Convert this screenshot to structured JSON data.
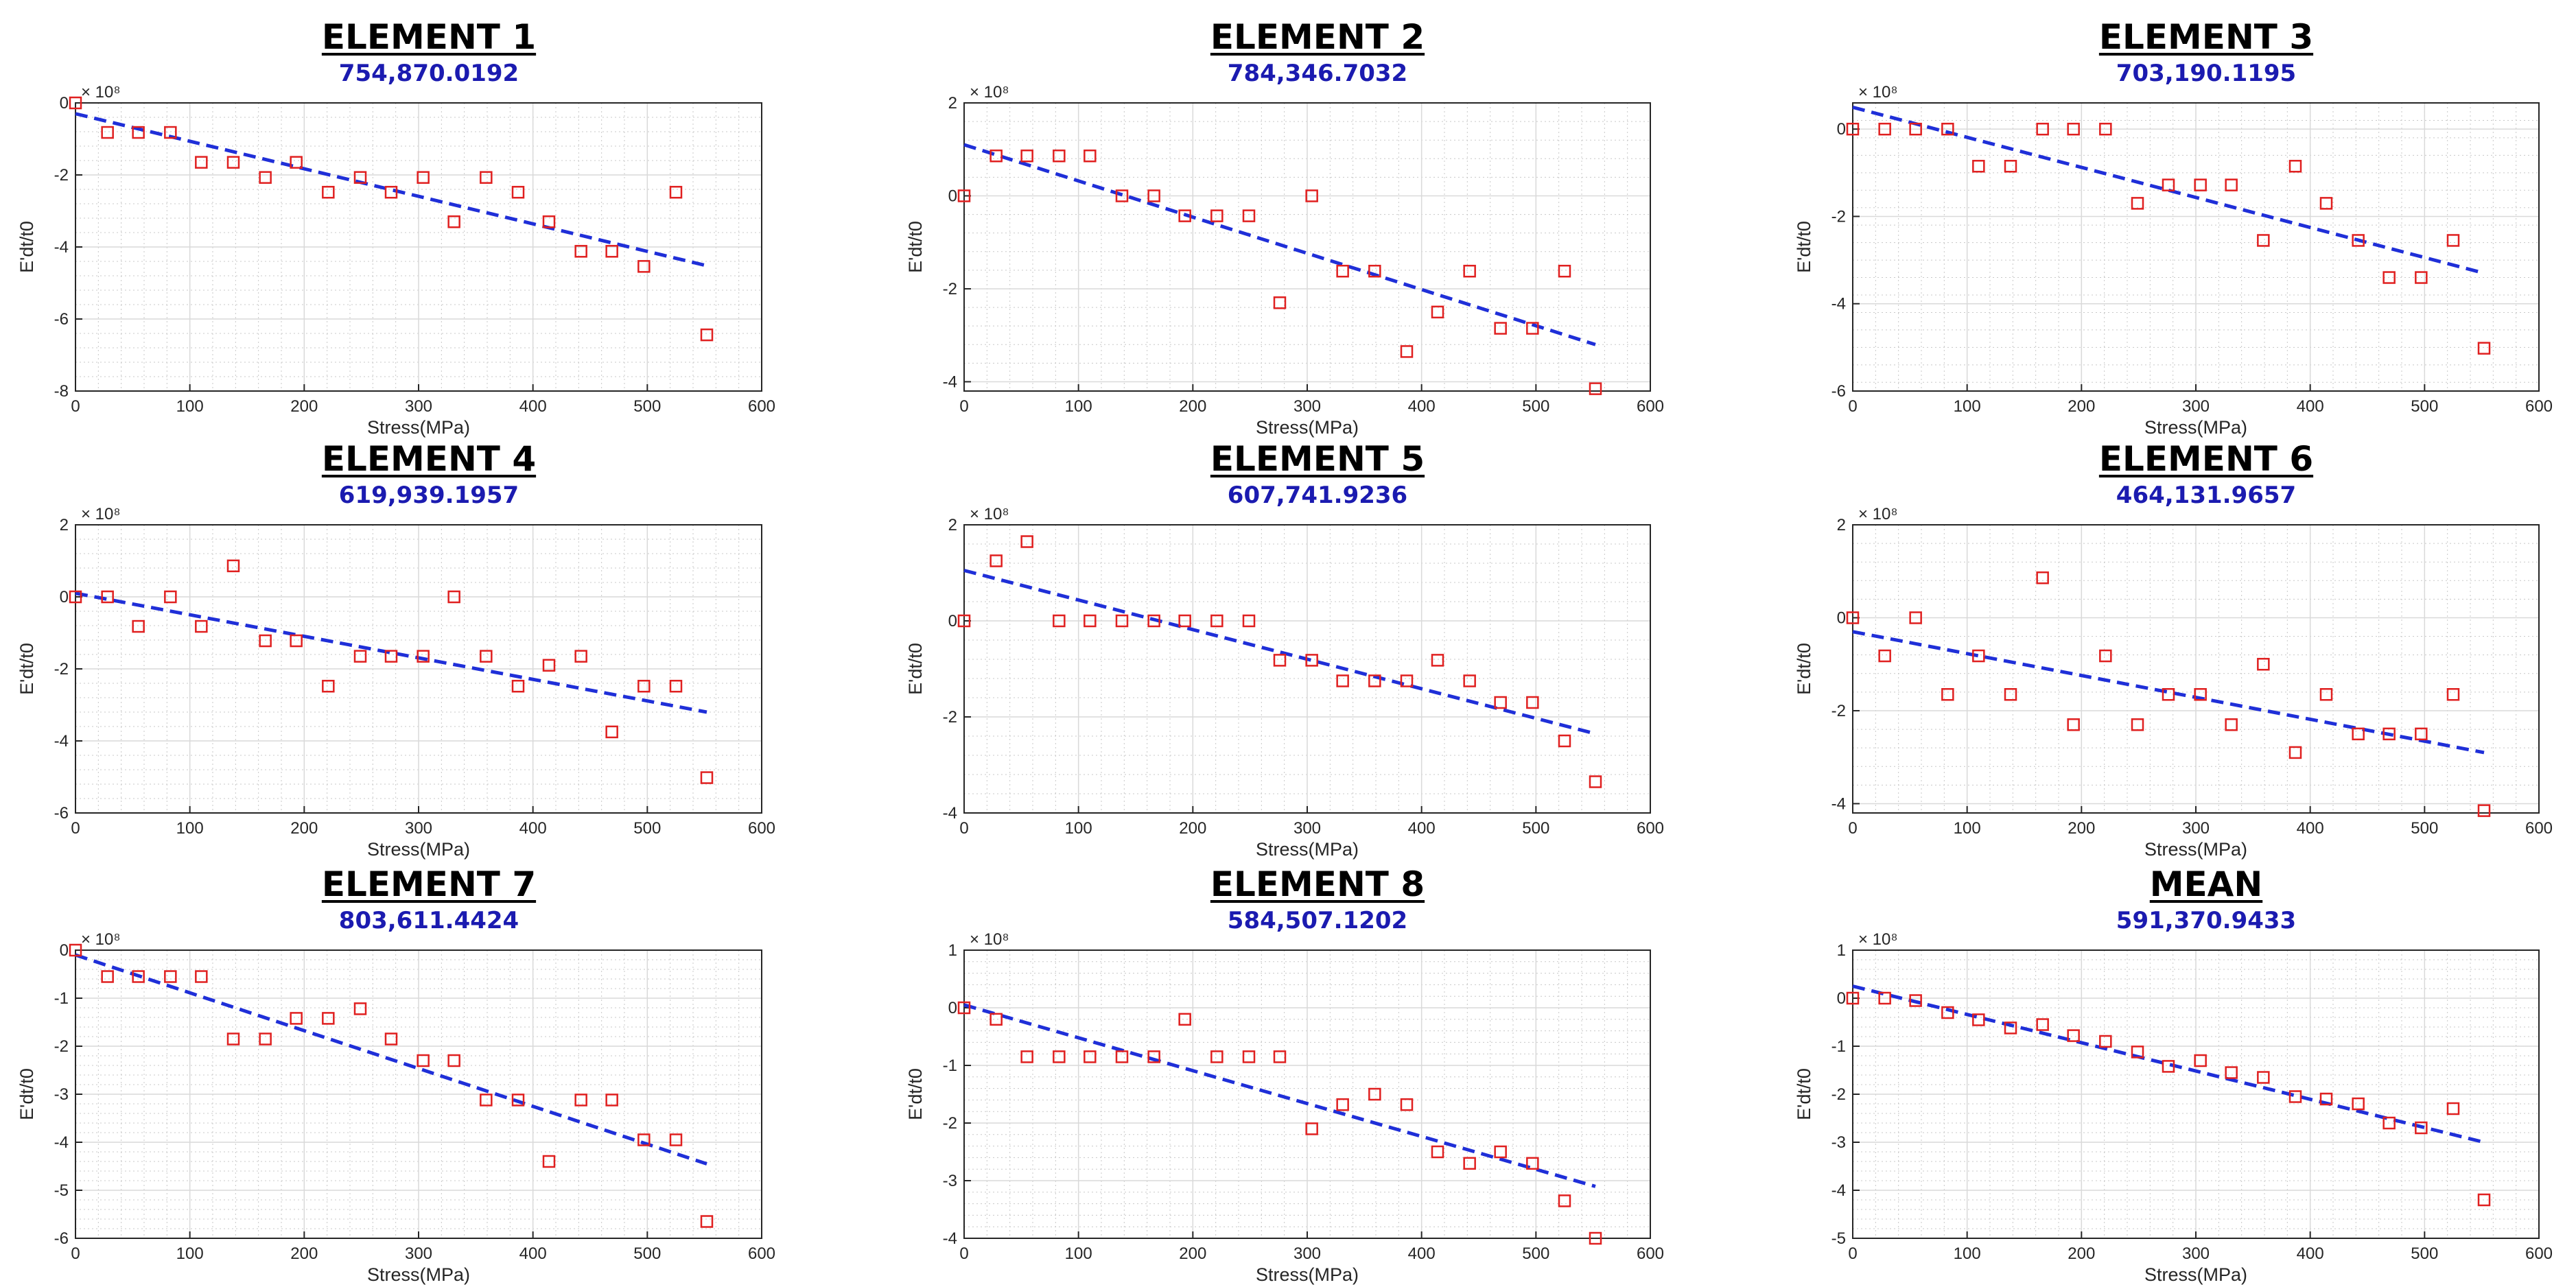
{
  "colors": {
    "points": "#e02020",
    "fit": "#1f2fd8",
    "subtitle": "#1b1bb0"
  },
  "chart_data": [
    {
      "type": "scatter",
      "title": "ELEMENT 1",
      "subtitle": "754,870.0192",
      "xlabel": "Stress(MPa)",
      "ylabel": "E'dt/t0",
      "exponent_label": "× 10⁸",
      "xlim": [
        0,
        600
      ],
      "ylim": [
        -8,
        0
      ],
      "xticks": [
        0,
        100,
        200,
        300,
        400,
        500,
        600
      ],
      "yticks": [
        -8,
        -6,
        -4,
        -2,
        0
      ],
      "x": [
        0,
        28,
        55,
        83,
        110,
        138,
        166,
        193,
        221,
        249,
        276,
        304,
        331,
        359,
        387,
        414,
        442,
        469,
        497,
        525,
        552
      ],
      "y": [
        0,
        -0.82,
        -0.82,
        -0.82,
        -1.65,
        -1.65,
        -2.07,
        -1.65,
        -2.48,
        -2.07,
        -2.48,
        -2.07,
        -3.3,
        -2.07,
        -2.48,
        -3.3,
        -4.12,
        -4.12,
        -4.54,
        -2.48,
        -6.44
      ],
      "fit": {
        "x": [
          0,
          552
        ],
        "y": [
          -0.3,
          -4.52
        ]
      }
    },
    {
      "type": "scatter",
      "title": "ELEMENT 2",
      "subtitle": "784,346.7032",
      "xlabel": "Stress(MPa)",
      "ylabel": "E'dt/t0",
      "exponent_label": "× 10⁸",
      "xlim": [
        0,
        600
      ],
      "ylim": [
        -4.2,
        2
      ],
      "xticks": [
        0,
        100,
        200,
        300,
        400,
        500,
        600
      ],
      "yticks": [
        -4,
        -2,
        0,
        2
      ],
      "x": [
        0,
        28,
        55,
        83,
        110,
        138,
        166,
        193,
        221,
        249,
        276,
        304,
        331,
        359,
        387,
        414,
        442,
        469,
        497,
        525,
        552
      ],
      "y": [
        0,
        0.86,
        0.86,
        0.86,
        0.86,
        0,
        0,
        -0.43,
        -0.43,
        -0.43,
        -2.3,
        0,
        -1.62,
        -1.62,
        -3.35,
        -2.5,
        -1.62,
        -2.85,
        -2.85,
        -1.62,
        -4.15
      ],
      "fit": {
        "x": [
          0,
          552
        ],
        "y": [
          1.1,
          -3.2
        ]
      }
    },
    {
      "type": "scatter",
      "title": "ELEMENT 3",
      "subtitle": "703,190.1195",
      "xlabel": "Stress(MPa)",
      "ylabel": "E'dt/t0",
      "exponent_label": "× 10⁸",
      "xlim": [
        0,
        600
      ],
      "ylim": [
        -6,
        0.6
      ],
      "xticks": [
        0,
        100,
        200,
        300,
        400,
        500,
        600
      ],
      "yticks": [
        -6,
        -4,
        -2,
        0
      ],
      "x": [
        0,
        28,
        55,
        83,
        110,
        138,
        166,
        193,
        221,
        249,
        276,
        304,
        331,
        359,
        387,
        414,
        442,
        469,
        497,
        525,
        552
      ],
      "y": [
        0,
        0,
        0,
        0,
        -0.85,
        -0.85,
        0,
        0,
        0,
        -1.7,
        -1.28,
        -1.28,
        -1.28,
        -2.55,
        -0.85,
        -1.7,
        -2.55,
        -3.4,
        -3.4,
        -2.55,
        -5.02
      ],
      "fit": {
        "x": [
          0,
          552
        ],
        "y": [
          0.5,
          -3.3
        ]
      }
    },
    {
      "type": "scatter",
      "title": "ELEMENT 4",
      "subtitle": "619,939.1957",
      "xlabel": "Stress(MPa)",
      "ylabel": "E'dt/t0",
      "exponent_label": "× 10⁸",
      "xlim": [
        0,
        600
      ],
      "ylim": [
        -6,
        2
      ],
      "xticks": [
        0,
        100,
        200,
        300,
        400,
        500,
        600
      ],
      "yticks": [
        -6,
        -4,
        -2,
        0,
        2
      ],
      "x": [
        0,
        28,
        55,
        83,
        110,
        138,
        166,
        193,
        221,
        249,
        276,
        304,
        331,
        359,
        387,
        414,
        442,
        469,
        497,
        525,
        552
      ],
      "y": [
        0,
        0,
        -0.82,
        0,
        -0.82,
        0.86,
        -1.22,
        -1.22,
        -2.48,
        -1.65,
        -1.65,
        -1.65,
        0,
        -1.65,
        -2.48,
        -1.9,
        -1.65,
        -3.75,
        -2.48,
        -2.48,
        -5.02
      ],
      "fit": {
        "x": [
          0,
          552
        ],
        "y": [
          0.1,
          -3.2
        ]
      }
    },
    {
      "type": "scatter",
      "title": "ELEMENT 5",
      "subtitle": "607,741.9236",
      "xlabel": "Stress(MPa)",
      "ylabel": "E'dt/t0",
      "exponent_label": "× 10⁸",
      "xlim": [
        0,
        600
      ],
      "ylim": [
        -4,
        2
      ],
      "xticks": [
        0,
        100,
        200,
        300,
        400,
        500,
        600
      ],
      "yticks": [
        -4,
        -2,
        0,
        2
      ],
      "x": [
        0,
        28,
        55,
        83,
        110,
        138,
        166,
        193,
        221,
        249,
        276,
        304,
        331,
        359,
        387,
        414,
        442,
        469,
        497,
        525,
        552
      ],
      "y": [
        0,
        1.25,
        1.65,
        0,
        0,
        0,
        0,
        0,
        0,
        0,
        -0.82,
        -0.82,
        -1.25,
        -1.25,
        -1.25,
        -0.82,
        -1.25,
        -1.7,
        -1.7,
        -2.5,
        -3.35
      ],
      "fit": {
        "x": [
          0,
          552
        ],
        "y": [
          1.05,
          -2.35
        ]
      }
    },
    {
      "type": "scatter",
      "title": "ELEMENT 6",
      "subtitle": "464,131.9657",
      "xlabel": "Stress(MPa)",
      "ylabel": "E'dt/t0",
      "exponent_label": "× 10⁸",
      "xlim": [
        0,
        600
      ],
      "ylim": [
        -4.2,
        2
      ],
      "xticks": [
        0,
        100,
        200,
        300,
        400,
        500,
        600
      ],
      "yticks": [
        -4,
        -2,
        0,
        2
      ],
      "x": [
        0,
        28,
        55,
        83,
        110,
        138,
        166,
        193,
        221,
        249,
        276,
        304,
        331,
        359,
        387,
        414,
        442,
        469,
        497,
        525,
        552
      ],
      "y": [
        0,
        -0.82,
        0,
        -1.65,
        -0.82,
        -1.65,
        0.86,
        -2.3,
        -0.82,
        -2.3,
        -1.65,
        -1.65,
        -2.3,
        -1.0,
        -2.9,
        -1.65,
        -2.5,
        -2.5,
        -2.5,
        -1.65,
        -4.15
      ],
      "fit": {
        "x": [
          0,
          552
        ],
        "y": [
          -0.3,
          -2.9
        ]
      }
    },
    {
      "type": "scatter",
      "title": "ELEMENT 7",
      "subtitle": "803,611.4424",
      "xlabel": "Stress(MPa)",
      "ylabel": "E'dt/t0",
      "exponent_label": "× 10⁸",
      "xlim": [
        0,
        600
      ],
      "ylim": [
        -6,
        0
      ],
      "xticks": [
        0,
        100,
        200,
        300,
        400,
        500,
        600
      ],
      "yticks": [
        -6,
        -5,
        -4,
        -3,
        -2,
        -1,
        0
      ],
      "x": [
        0,
        28,
        55,
        83,
        110,
        138,
        166,
        193,
        221,
        249,
        276,
        304,
        331,
        359,
        387,
        414,
        442,
        469,
        497,
        525,
        552
      ],
      "y": [
        0,
        -0.55,
        -0.55,
        -0.55,
        -0.55,
        -1.85,
        -1.85,
        -1.42,
        -1.42,
        -1.22,
        -1.85,
        -2.3,
        -2.3,
        -3.12,
        -3.12,
        -4.4,
        -3.12,
        -3.12,
        -3.95,
        -3.95,
        -5.65
      ],
      "fit": {
        "x": [
          0,
          552
        ],
        "y": [
          -0.1,
          -4.45
        ]
      }
    },
    {
      "type": "scatter",
      "title": "ELEMENT 8",
      "subtitle": "584,507.1202",
      "xlabel": "Stress(MPa)",
      "ylabel": "E'dt/t0",
      "exponent_label": "× 10⁸",
      "xlim": [
        0,
        600
      ],
      "ylim": [
        -4,
        1
      ],
      "xticks": [
        0,
        100,
        200,
        300,
        400,
        500,
        600
      ],
      "yticks": [
        -4,
        -3,
        -2,
        -1,
        0,
        1
      ],
      "x": [
        0,
        28,
        55,
        83,
        110,
        138,
        166,
        193,
        221,
        249,
        276,
        304,
        331,
        359,
        387,
        414,
        442,
        469,
        497,
        525,
        552
      ],
      "y": [
        0,
        -0.2,
        -0.85,
        -0.85,
        -0.85,
        -0.85,
        -0.85,
        -0.2,
        -0.85,
        -0.85,
        -0.85,
        -2.1,
        -1.68,
        -1.5,
        -1.68,
        -2.5,
        -2.7,
        -2.5,
        -2.7,
        -3.35,
        -4.0
      ],
      "fit": {
        "x": [
          0,
          552
        ],
        "y": [
          0.05,
          -3.1
        ]
      }
    },
    {
      "type": "scatter",
      "title": "MEAN",
      "subtitle": "591,370.9433",
      "xlabel": "Stress(MPa)",
      "ylabel": "E'dt/t0",
      "exponent_label": "× 10⁸",
      "xlim": [
        0,
        600
      ],
      "ylim": [
        -5,
        1
      ],
      "xticks": [
        0,
        100,
        200,
        300,
        400,
        500,
        600
      ],
      "yticks": [
        -5,
        -4,
        -3,
        -2,
        -1,
        0,
        1
      ],
      "x": [
        0,
        28,
        55,
        83,
        110,
        138,
        166,
        193,
        221,
        249,
        276,
        304,
        331,
        359,
        387,
        414,
        442,
        469,
        497,
        525,
        552
      ],
      "y": [
        0,
        0,
        -0.05,
        -0.3,
        -0.45,
        -0.62,
        -0.55,
        -0.78,
        -0.9,
        -1.12,
        -1.42,
        -1.3,
        -1.55,
        -1.65,
        -2.05,
        -2.1,
        -2.2,
        -2.6,
        -2.7,
        -2.3,
        -4.2
      ],
      "fit": {
        "x": [
          0,
          552
        ],
        "y": [
          0.25,
          -3.0
        ]
      }
    }
  ]
}
